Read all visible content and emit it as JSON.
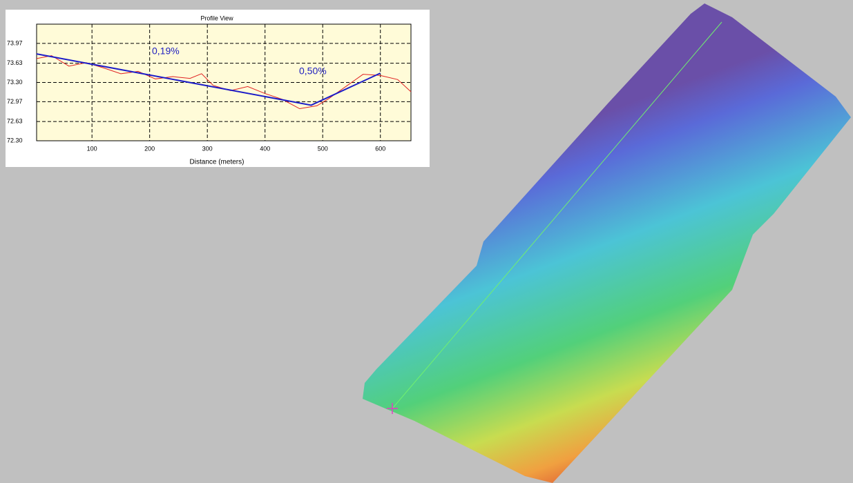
{
  "chart_data": {
    "type": "line",
    "title": "Profile View",
    "xlabel": "Distance (meters)",
    "xlim": [
      4,
      653
    ],
    "xticks": [
      100,
      200,
      300,
      400,
      500,
      600
    ],
    "ylim": [
      72.3,
      74.3
    ],
    "yticks": [
      {
        "value": 72.3,
        "label": "72.30"
      },
      72.63,
      72.97,
      {
        "value": 73.3,
        "label": "73.30"
      },
      73.63,
      73.97
    ],
    "grid": true,
    "series": [
      {
        "color": "#e02020",
        "x": [
          4,
          30,
          60,
          90,
          120,
          150,
          180,
          210,
          240,
          270,
          290,
          310,
          340,
          370,
          400,
          430,
          460,
          490,
          510,
          540,
          570,
          600,
          630,
          653
        ],
        "values": [
          73.71,
          73.76,
          73.58,
          73.64,
          73.55,
          73.45,
          73.49,
          73.36,
          73.4,
          73.37,
          73.45,
          73.25,
          73.16,
          73.23,
          73.11,
          73.01,
          72.85,
          72.9,
          73.02,
          73.23,
          73.44,
          73.42,
          73.35,
          73.14
        ]
      },
      {
        "color": "#1c1cc8",
        "x": [
          4,
          480,
          600
        ],
        "values": [
          73.79,
          72.91,
          73.46
        ]
      }
    ],
    "annotations": [
      "0,19%",
      "0,50%"
    ]
  }
}
